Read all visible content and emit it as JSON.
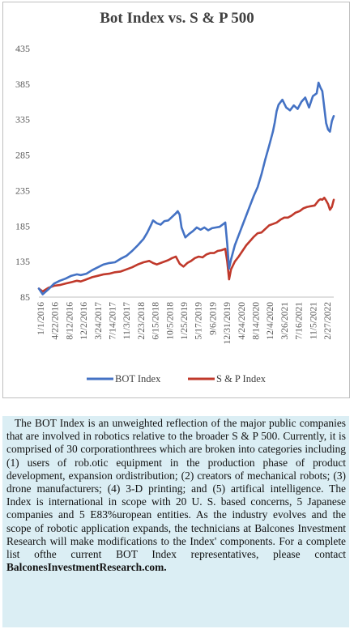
{
  "chart_data": {
    "type": "line",
    "title": "Bot Index vs. S & P 500",
    "xlabel": "",
    "ylabel": "",
    "ylim": [
      85,
      435
    ],
    "yticks": [
      85,
      135,
      185,
      235,
      285,
      335,
      385,
      435
    ],
    "xticks": [
      "1/1/2016",
      "4/22/2016",
      "8/12/2016",
      "12/2/2016",
      "3/24/2017",
      "7/14/2017",
      "11/3/2017",
      "2/23/2018",
      "6/15/2018",
      "10/5/2018",
      "1/25/2019",
      "5/17/2019",
      "9/6/2019",
      "12/31/2019",
      "4/24/2020",
      "8/14/2020",
      "12/4/2020",
      "3/26/2021",
      "7/16/2021",
      "11/5/2021",
      "2/27/2022"
    ],
    "grid": false,
    "legend": "bottom",
    "series": [
      {
        "name": "BOT Index",
        "color": "#4472c4",
        "values": [
          [
            0,
            97
          ],
          [
            2,
            89
          ],
          [
            5,
            96
          ],
          [
            8,
            104
          ],
          [
            11,
            108
          ],
          [
            14,
            111
          ],
          [
            17,
            115
          ],
          [
            20,
            117
          ],
          [
            22,
            116
          ],
          [
            25,
            118
          ],
          [
            28,
            123
          ],
          [
            31,
            127
          ],
          [
            34,
            131
          ],
          [
            37,
            133
          ],
          [
            40,
            134
          ],
          [
            43,
            139
          ],
          [
            46,
            143
          ],
          [
            49,
            150
          ],
          [
            52,
            158
          ],
          [
            55,
            167
          ],
          [
            57,
            176
          ],
          [
            59,
            187
          ],
          [
            60,
            193
          ],
          [
            62,
            189
          ],
          [
            64,
            187
          ],
          [
            66,
            192
          ],
          [
            68,
            193
          ],
          [
            70,
            198
          ],
          [
            72,
            203
          ],
          [
            73,
            206
          ],
          [
            74,
            201
          ],
          [
            75,
            183
          ],
          [
            77,
            169
          ],
          [
            79,
            174
          ],
          [
            81,
            178
          ],
          [
            83,
            183
          ],
          [
            85,
            180
          ],
          [
            87,
            183
          ],
          [
            89,
            179
          ],
          [
            91,
            182
          ],
          [
            93,
            183
          ],
          [
            95,
            184
          ],
          [
            97,
            188
          ],
          [
            98,
            190
          ],
          [
            99,
            160
          ],
          [
            100,
            125
          ],
          [
            101,
            138
          ],
          [
            103,
            158
          ],
          [
            105,
            172
          ],
          [
            107,
            186
          ],
          [
            109,
            200
          ],
          [
            111,
            214
          ],
          [
            113,
            228
          ],
          [
            115,
            240
          ],
          [
            117,
            258
          ],
          [
            119,
            279
          ],
          [
            121,
            298
          ],
          [
            123,
            318
          ],
          [
            124,
            331
          ],
          [
            125,
            347
          ],
          [
            126,
            356
          ],
          [
            128,
            363
          ],
          [
            130,
            352
          ],
          [
            132,
            348
          ],
          [
            134,
            355
          ],
          [
            136,
            350
          ],
          [
            138,
            360
          ],
          [
            140,
            366
          ],
          [
            142,
            352
          ],
          [
            144,
            368
          ],
          [
            146,
            372
          ],
          [
            147,
            387
          ],
          [
            148,
            380
          ],
          [
            149,
            375
          ],
          [
            150,
            352
          ],
          [
            151,
            330
          ],
          [
            152,
            321
          ],
          [
            153,
            318
          ],
          [
            154,
            333
          ],
          [
            155,
            340
          ]
        ]
      },
      {
        "name": "S & P Index",
        "color": "#c0392b",
        "values": [
          [
            0,
            97
          ],
          [
            2,
            93
          ],
          [
            5,
            98
          ],
          [
            8,
            101
          ],
          [
            11,
            102
          ],
          [
            14,
            104
          ],
          [
            17,
            106
          ],
          [
            20,
            108
          ],
          [
            22,
            107
          ],
          [
            25,
            110
          ],
          [
            28,
            113
          ],
          [
            31,
            115
          ],
          [
            34,
            117
          ],
          [
            37,
            118
          ],
          [
            40,
            120
          ],
          [
            43,
            121
          ],
          [
            46,
            124
          ],
          [
            49,
            127
          ],
          [
            52,
            131
          ],
          [
            55,
            134
          ],
          [
            58,
            136
          ],
          [
            60,
            133
          ],
          [
            62,
            131
          ],
          [
            64,
            133
          ],
          [
            66,
            135
          ],
          [
            68,
            137
          ],
          [
            70,
            140
          ],
          [
            72,
            142
          ],
          [
            74,
            132
          ],
          [
            76,
            128
          ],
          [
            78,
            133
          ],
          [
            80,
            136
          ],
          [
            82,
            140
          ],
          [
            84,
            142
          ],
          [
            86,
            141
          ],
          [
            88,
            145
          ],
          [
            90,
            147
          ],
          [
            92,
            147
          ],
          [
            94,
            150
          ],
          [
            96,
            151
          ],
          [
            98,
            153
          ],
          [
            99,
            135
          ],
          [
            100,
            110
          ],
          [
            101,
            124
          ],
          [
            103,
            135
          ],
          [
            105,
            142
          ],
          [
            107,
            150
          ],
          [
            109,
            158
          ],
          [
            111,
            164
          ],
          [
            113,
            170
          ],
          [
            115,
            175
          ],
          [
            117,
            176
          ],
          [
            119,
            181
          ],
          [
            121,
            186
          ],
          [
            123,
            188
          ],
          [
            125,
            190
          ],
          [
            127,
            194
          ],
          [
            129,
            197
          ],
          [
            131,
            197
          ],
          [
            133,
            200
          ],
          [
            135,
            204
          ],
          [
            137,
            206
          ],
          [
            139,
            210
          ],
          [
            141,
            212
          ],
          [
            143,
            213
          ],
          [
            145,
            214
          ],
          [
            147,
            221
          ],
          [
            148,
            223
          ],
          [
            149,
            222
          ],
          [
            150,
            225
          ],
          [
            151,
            221
          ],
          [
            152,
            216
          ],
          [
            153,
            208
          ],
          [
            154,
            212
          ],
          [
            155,
            222
          ]
        ]
      }
    ]
  },
  "description": {
    "text": "The BOT Index is an unweighted reflection of the major public companies that are involved in robotics relative to the broader S & P 500. Currently, it is comprised of 30 corporationthrees which are broken into categories including (1) users of rob.otic equipment in the production phase of product development, expansion ordistribution; (2) creators of mechanical robots; (3) drone manufacturers; (4) 3-D printing; and (5) artifical intelligence. The Index is international in scope with 20 U. S. based concerns, 5 Japanese companies and 5 E83%uropean entities. As the industry evolves and the scope of robotic application expands, the technicians at Balcones Investment Research will make modifications to the Index' components. For a complete list ofthe current BOT Index representatives, please contact",
    "link": "BalconesInvestmentResearch.com."
  }
}
